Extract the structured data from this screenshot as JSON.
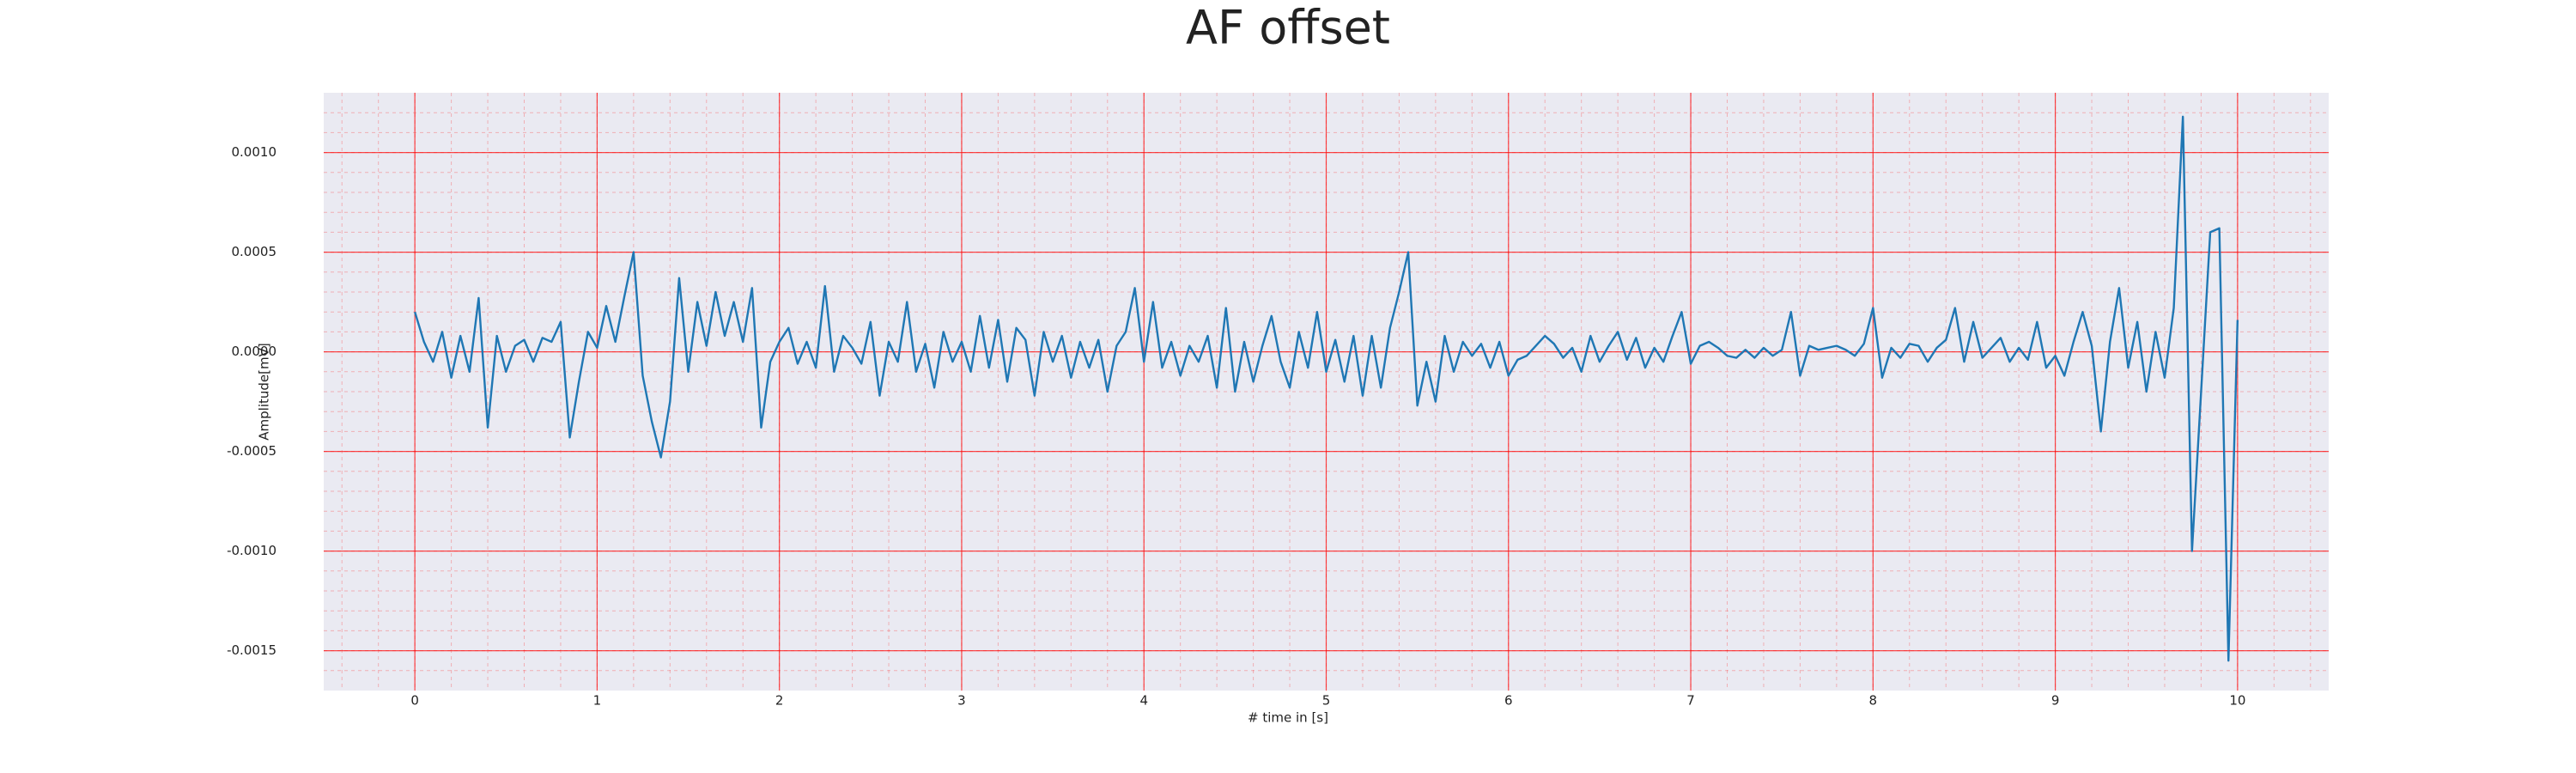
{
  "chart_data": {
    "type": "line",
    "title": "AF offset",
    "x_label": "# time in [s]",
    "y_label": "Amplitude[mV]",
    "x": [
      0,
      0.05,
      0.1,
      0.15,
      0.2,
      0.25,
      0.3,
      0.35,
      0.4,
      0.45,
      0.5,
      0.55,
      0.6,
      0.65,
      0.7,
      0.75,
      0.8,
      0.85,
      0.9,
      0.95,
      1,
      1.05,
      1.1,
      1.15,
      1.2,
      1.25,
      1.3,
      1.35,
      1.4,
      1.45,
      1.5,
      1.55,
      1.6,
      1.65,
      1.7,
      1.75,
      1.8,
      1.85,
      1.9,
      1.95,
      2,
      2.05,
      2.1,
      2.15,
      2.2,
      2.25,
      2.3,
      2.35,
      2.4,
      2.45,
      2.5,
      2.55,
      2.6,
      2.65,
      2.7,
      2.75,
      2.8,
      2.85,
      2.9,
      2.95,
      3,
      3.05,
      3.1,
      3.15,
      3.2,
      3.25,
      3.3,
      3.35,
      3.4,
      3.45,
      3.5,
      3.55,
      3.6,
      3.65,
      3.7,
      3.75,
      3.8,
      3.85,
      3.9,
      3.95,
      4,
      4.05,
      4.1,
      4.15,
      4.2,
      4.25,
      4.3,
      4.35,
      4.4,
      4.45,
      4.5,
      4.55,
      4.6,
      4.65,
      4.7,
      4.75,
      4.8,
      4.85,
      4.9,
      4.95,
      5,
      5.05,
      5.1,
      5.15,
      5.2,
      5.25,
      5.3,
      5.35,
      5.4,
      5.45,
      5.5,
      5.55,
      5.6,
      5.65,
      5.7,
      5.75,
      5.8,
      5.85,
      5.9,
      5.95,
      6,
      6.05,
      6.1,
      6.15,
      6.2,
      6.25,
      6.3,
      6.35,
      6.4,
      6.45,
      6.5,
      6.55,
      6.6,
      6.65,
      6.7,
      6.75,
      6.8,
      6.85,
      6.9,
      6.95,
      7,
      7.05,
      7.1,
      7.15,
      7.2,
      7.25,
      7.3,
      7.35,
      7.4,
      7.45,
      7.5,
      7.55,
      7.6,
      7.65,
      7.7,
      7.75,
      7.8,
      7.85,
      7.9,
      7.95,
      8,
      8.05,
      8.1,
      8.15,
      8.2,
      8.25,
      8.3,
      8.35,
      8.4,
      8.45,
      8.5,
      8.55,
      8.6,
      8.65,
      8.7,
      8.75,
      8.8,
      8.85,
      8.9,
      8.95,
      9,
      9.05,
      9.1,
      9.15,
      9.2,
      9.25,
      9.3,
      9.35,
      9.4,
      9.45,
      9.5,
      9.55,
      9.6,
      9.65,
      9.7,
      9.75,
      9.8,
      9.85,
      9.9,
      9.95,
      10
    ],
    "values": [
      0.0002,
      5e-05,
      -5e-05,
      0.0001,
      -0.00013,
      8e-05,
      -0.0001,
      0.00027,
      -0.00038,
      8e-05,
      -0.0001,
      3e-05,
      6e-05,
      -5e-05,
      7e-05,
      5e-05,
      0.00015,
      -0.00043,
      -0.00015,
      0.0001,
      2e-05,
      0.00023,
      5e-05,
      0.00028,
      0.0005,
      -0.00012,
      -0.00035,
      -0.00053,
      -0.00025,
      0.00037,
      -0.0001,
      0.00025,
      3e-05,
      0.0003,
      8e-05,
      0.00025,
      5e-05,
      0.00032,
      -0.00038,
      -5e-05,
      5e-05,
      0.00012,
      -6e-05,
      5e-05,
      -8e-05,
      0.00033,
      -0.0001,
      8e-05,
      2e-05,
      -6e-05,
      0.00015,
      -0.00022,
      5e-05,
      -5e-05,
      0.00025,
      -0.0001,
      4e-05,
      -0.00018,
      0.0001,
      -5e-05,
      5e-05,
      -0.0001,
      0.00018,
      -8e-05,
      0.00016,
      -0.00015,
      0.00012,
      6e-05,
      -0.00022,
      0.0001,
      -5e-05,
      8e-05,
      -0.00013,
      5e-05,
      -8e-05,
      6e-05,
      -0.0002,
      3e-05,
      0.0001,
      0.00032,
      -5e-05,
      0.00025,
      -8e-05,
      5e-05,
      -0.00012,
      3e-05,
      -5e-05,
      8e-05,
      -0.00018,
      0.00022,
      -0.0002,
      5e-05,
      -0.00015,
      3e-05,
      0.00018,
      -5e-05,
      -0.00018,
      0.0001,
      -8e-05,
      0.0002,
      -0.0001,
      6e-05,
      -0.00015,
      8e-05,
      -0.00022,
      8e-05,
      -0.00018,
      0.00012,
      0.0003,
      0.0005,
      -0.00027,
      -5e-05,
      -0.00025,
      8e-05,
      -0.0001,
      5e-05,
      -2e-05,
      4e-05,
      -8e-05,
      5e-05,
      -0.00012,
      -4e-05,
      -2e-05,
      3e-05,
      8e-05,
      4e-05,
      -3e-05,
      2e-05,
      -0.0001,
      8e-05,
      -5e-05,
      3e-05,
      0.0001,
      -4e-05,
      7e-05,
      -8e-05,
      2e-05,
      -5e-05,
      8e-05,
      0.0002,
      -6e-05,
      3e-05,
      5e-05,
      2e-05,
      -2e-05,
      -3e-05,
      1e-05,
      -3e-05,
      2e-05,
      -2e-05,
      1e-05,
      0.0002,
      -0.00012,
      3e-05,
      1e-05,
      2e-05,
      3e-05,
      1e-05,
      -2e-05,
      4e-05,
      0.00022,
      -0.00013,
      2e-05,
      -3e-05,
      4e-05,
      3e-05,
      -5e-05,
      2e-05,
      6e-05,
      0.00022,
      -5e-05,
      0.00015,
      -3e-05,
      2e-05,
      7e-05,
      -5e-05,
      2e-05,
      -4e-05,
      0.00015,
      -8e-05,
      -2e-05,
      -0.00012,
      5e-05,
      0.0002,
      3e-05,
      -0.0004,
      5e-05,
      0.00032,
      -8e-05,
      0.00015,
      -0.0002,
      0.0001,
      -0.00013,
      0.00022,
      0.00118,
      -0.001,
      -0.0002,
      0.0006,
      0.00062,
      -0.00155,
      0.00016
    ],
    "color": "#1f77b4",
    "xlim": [
      -0.5,
      10.5
    ],
    "xticks": [
      0,
      1,
      2,
      3,
      4,
      5,
      6,
      7,
      8,
      9,
      10
    ],
    "ylim": [
      -0.0017,
      0.0013
    ],
    "yticks": [
      {
        "value": -0.0015,
        "label": "-0.0015"
      },
      {
        "value": -0.001,
        "label": "-0.0010"
      },
      {
        "value": -0.0005,
        "label": "-0.0005"
      },
      {
        "value": 0,
        "label": "0.0000"
      },
      {
        "value": 0.0005,
        "label": "0.0005"
      },
      {
        "value": 0.001,
        "label": "0.0010"
      }
    ],
    "grid": true,
    "minor_grid": true,
    "grid_color": "#ff0000"
  }
}
